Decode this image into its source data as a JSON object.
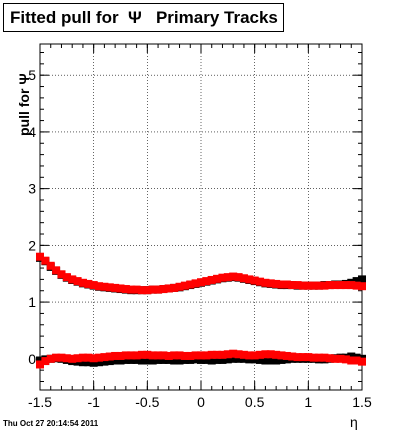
{
  "chart_data": {
    "type": "scatter",
    "title": "Fitted pull for  Ψ   Primary Tracks",
    "xlabel": "η",
    "ylabel": "pull for Ψ",
    "xlim": [
      -1.5,
      1.5
    ],
    "ylim": [
      -0.55,
      5.55
    ],
    "grid": true,
    "x_ticks": [
      "-1.5",
      "-1",
      "-0.5",
      "0",
      "0.5",
      "1",
      "1.5"
    ],
    "x_tick_values": [
      -1.5,
      -1,
      -0.5,
      0,
      0.5,
      1,
      1.5
    ],
    "y_ticks": [
      "0",
      "1",
      "2",
      "3",
      "4",
      "5"
    ],
    "y_tick_values": [
      0,
      1,
      2,
      3,
      4,
      5
    ],
    "series": [
      {
        "color": "#000000",
        "x": [
          -1.5,
          -1.45,
          -1.4,
          -1.35,
          -1.3,
          -1.25,
          -1.2,
          -1.15,
          -1.1,
          -1.05,
          -1.0,
          -0.95,
          -0.9,
          -0.85,
          -0.8,
          -0.75,
          -0.7,
          -0.65,
          -0.6,
          -0.55,
          -0.5,
          -0.45,
          -0.4,
          -0.35,
          -0.3,
          -0.25,
          -0.2,
          -0.15,
          -0.1,
          -0.05,
          0.0,
          0.05,
          0.1,
          0.15,
          0.2,
          0.25,
          0.3,
          0.35,
          0.4,
          0.45,
          0.5,
          0.55,
          0.6,
          0.65,
          0.7,
          0.75,
          0.8,
          0.85,
          0.9,
          0.95,
          1.0,
          1.05,
          1.1,
          1.15,
          1.2,
          1.25,
          1.3,
          1.35,
          1.4,
          1.45,
          1.5
        ],
        "y": [
          1.78,
          1.72,
          1.62,
          1.55,
          1.48,
          1.43,
          1.39,
          1.36,
          1.33,
          1.31,
          1.29,
          1.27,
          1.26,
          1.25,
          1.24,
          1.23,
          1.22,
          1.21,
          1.21,
          1.21,
          1.21,
          1.22,
          1.22,
          1.23,
          1.24,
          1.25,
          1.26,
          1.28,
          1.3,
          1.32,
          1.34,
          1.36,
          1.38,
          1.4,
          1.42,
          1.43,
          1.44,
          1.43,
          1.41,
          1.39,
          1.37,
          1.35,
          1.33,
          1.32,
          1.31,
          1.3,
          1.3,
          1.3,
          1.29,
          1.29,
          1.29,
          1.29,
          1.29,
          1.3,
          1.3,
          1.31,
          1.31,
          1.32,
          1.34,
          1.37,
          1.4
        ]
      },
      {
        "color": "#ff0000",
        "x": [
          -1.5,
          -1.45,
          -1.4,
          -1.35,
          -1.3,
          -1.25,
          -1.2,
          -1.15,
          -1.1,
          -1.05,
          -1.0,
          -0.95,
          -0.9,
          -0.85,
          -0.8,
          -0.75,
          -0.7,
          -0.65,
          -0.6,
          -0.55,
          -0.5,
          -0.45,
          -0.4,
          -0.35,
          -0.3,
          -0.25,
          -0.2,
          -0.15,
          -0.1,
          -0.05,
          0.0,
          0.05,
          0.1,
          0.15,
          0.2,
          0.25,
          0.3,
          0.35,
          0.4,
          0.45,
          0.5,
          0.55,
          0.6,
          0.65,
          0.7,
          0.75,
          0.8,
          0.85,
          0.9,
          0.95,
          1.0,
          1.05,
          1.1,
          1.15,
          1.2,
          1.25,
          1.3,
          1.35,
          1.4,
          1.45,
          1.5
        ],
        "y": [
          1.8,
          1.73,
          1.64,
          1.56,
          1.49,
          1.44,
          1.4,
          1.37,
          1.34,
          1.32,
          1.3,
          1.28,
          1.27,
          1.26,
          1.25,
          1.24,
          1.23,
          1.22,
          1.22,
          1.21,
          1.21,
          1.22,
          1.22,
          1.23,
          1.24,
          1.25,
          1.27,
          1.29,
          1.31,
          1.33,
          1.35,
          1.37,
          1.39,
          1.41,
          1.43,
          1.44,
          1.45,
          1.44,
          1.42,
          1.4,
          1.38,
          1.36,
          1.34,
          1.33,
          1.32,
          1.31,
          1.31,
          1.3,
          1.3,
          1.29,
          1.29,
          1.29,
          1.29,
          1.29,
          1.3,
          1.3,
          1.3,
          1.3,
          1.3,
          1.29,
          1.28
        ]
      },
      {
        "color": "#000000",
        "x": [
          -1.5,
          -1.45,
          -1.4,
          -1.35,
          -1.3,
          -1.25,
          -1.2,
          -1.15,
          -1.1,
          -1.05,
          -1.0,
          -0.95,
          -0.9,
          -0.85,
          -0.8,
          -0.75,
          -0.7,
          -0.65,
          -0.6,
          -0.55,
          -0.5,
          -0.45,
          -0.4,
          -0.35,
          -0.3,
          -0.25,
          -0.2,
          -0.15,
          -0.1,
          -0.05,
          0.0,
          0.05,
          0.1,
          0.15,
          0.2,
          0.25,
          0.3,
          0.35,
          0.4,
          0.45,
          0.5,
          0.55,
          0.6,
          0.65,
          0.7,
          0.75,
          0.8,
          0.85,
          0.9,
          0.95,
          1.0,
          1.05,
          1.1,
          1.15,
          1.2,
          1.25,
          1.3,
          1.35,
          1.4,
          1.45,
          1.5
        ],
        "y": [
          -0.03,
          -0.01,
          0.0,
          0.01,
          0.0,
          -0.02,
          -0.04,
          -0.05,
          -0.06,
          -0.06,
          -0.07,
          -0.06,
          -0.05,
          -0.04,
          -0.03,
          -0.03,
          -0.02,
          -0.02,
          -0.02,
          -0.03,
          -0.03,
          -0.03,
          -0.02,
          -0.02,
          -0.02,
          -0.03,
          -0.03,
          -0.02,
          -0.02,
          -0.01,
          -0.02,
          -0.02,
          -0.03,
          -0.02,
          -0.02,
          -0.01,
          0.0,
          0.0,
          0.0,
          -0.01,
          -0.01,
          -0.02,
          -0.03,
          -0.03,
          -0.03,
          -0.02,
          -0.01,
          0.0,
          0.0,
          0.0,
          0.0,
          0.0,
          -0.01,
          -0.01,
          0.0,
          0.01,
          0.02,
          0.02,
          0.04,
          0.02,
          0.0
        ]
      },
      {
        "color": "#ff0000",
        "x": [
          -1.5,
          -1.45,
          -1.4,
          -1.35,
          -1.3,
          -1.25,
          -1.2,
          -1.15,
          -1.1,
          -1.05,
          -1.0,
          -0.95,
          -0.9,
          -0.85,
          -0.8,
          -0.75,
          -0.7,
          -0.65,
          -0.6,
          -0.55,
          -0.5,
          -0.45,
          -0.4,
          -0.35,
          -0.3,
          -0.25,
          -0.2,
          -0.15,
          -0.1,
          -0.05,
          0.0,
          0.05,
          0.1,
          0.15,
          0.2,
          0.25,
          0.3,
          0.35,
          0.4,
          0.45,
          0.5,
          0.55,
          0.6,
          0.65,
          0.7,
          0.75,
          0.8,
          0.85,
          0.9,
          0.95,
          1.0,
          1.05,
          1.1,
          1.15,
          1.2,
          1.25,
          1.3,
          1.35,
          1.4,
          1.45,
          1.5
        ],
        "y": [
          -0.1,
          -0.04,
          0.0,
          0.02,
          0.02,
          0.01,
          0.0,
          0.01,
          0.02,
          0.02,
          0.01,
          0.02,
          0.03,
          0.04,
          0.05,
          0.05,
          0.06,
          0.06,
          0.06,
          0.07,
          0.07,
          0.06,
          0.06,
          0.06,
          0.05,
          0.06,
          0.06,
          0.05,
          0.05,
          0.06,
          0.06,
          0.06,
          0.07,
          0.07,
          0.07,
          0.08,
          0.09,
          0.08,
          0.07,
          0.06,
          0.06,
          0.07,
          0.08,
          0.08,
          0.07,
          0.06,
          0.05,
          0.04,
          0.03,
          0.03,
          0.03,
          0.02,
          0.02,
          0.02,
          0.01,
          0.0,
          0.0,
          -0.01,
          -0.03,
          -0.03,
          -0.05
        ]
      }
    ]
  },
  "footer": {
    "timestamp": "Thu Oct 27 20:14:54 2011"
  }
}
